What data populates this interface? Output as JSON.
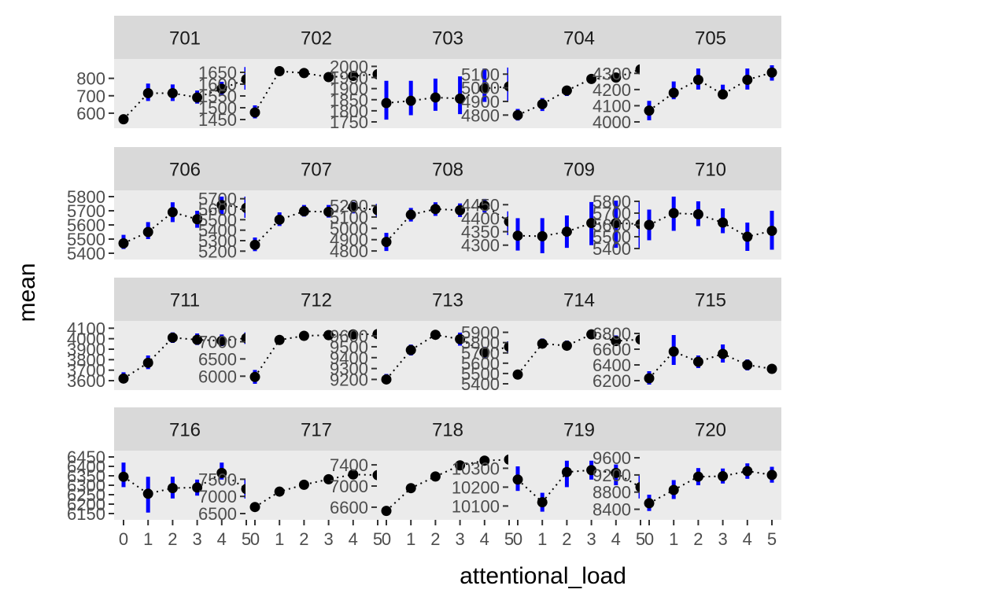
{
  "chart_data": {
    "type": "scatter",
    "description_style": "faceted point-range plot with dotted connecting lines",
    "xlabel": "attentional_load",
    "ylabel": "mean",
    "x_ticks": [
      0,
      1,
      2,
      3,
      4,
      5
    ],
    "grid": false,
    "colors": {
      "error_bar": "#0000ff",
      "point": "#000000",
      "line": "#000000",
      "strip": "#d9d9d9",
      "panel": "#ebebeb"
    },
    "panels": [
      {
        "label": "701",
        "ylim": [
          550,
          875
        ],
        "yticks": [
          600,
          700,
          800
        ],
        "means": [
          565,
          715,
          715,
          690,
          740,
          795
        ],
        "lower": [
          545,
          670,
          670,
          655,
          705,
          735
        ],
        "upper": [
          590,
          770,
          765,
          730,
          780,
          865
        ]
      },
      {
        "label": "702",
        "ylim": [
          1440,
          1680
        ],
        "yticks": [
          1450,
          1500,
          1550,
          1600,
          1650
        ],
        "means": [
          1480,
          1655,
          1647,
          1630,
          1635,
          1642
        ],
        "lower": [
          1455,
          1648,
          1640,
          1624,
          1628,
          1635
        ],
        "upper": [
          1510,
          1662,
          1654,
          1636,
          1642,
          1649
        ]
      },
      {
        "label": "703",
        "ylim": [
          1750,
          2005
        ],
        "yticks": [
          1750,
          1800,
          1850,
          1900,
          1950,
          2000
        ],
        "means": [
          1835,
          1845,
          1860,
          1855,
          1900,
          1910
        ],
        "lower": [
          1760,
          1780,
          1800,
          1785,
          1840,
          1845
        ],
        "upper": [
          1935,
          1935,
          1945,
          1955,
          1990,
          1995
        ]
      },
      {
        "label": "704",
        "ylim": [
          4750,
          5165
        ],
        "yticks": [
          4800,
          4900,
          5000,
          5100
        ],
        "means": [
          4800,
          4880,
          4980,
          5065,
          5075,
          5135
        ],
        "lower": [
          4760,
          4830,
          4940,
          5045,
          5055,
          5120
        ],
        "upper": [
          4845,
          4925,
          5010,
          5080,
          5090,
          5150
        ]
      },
      {
        "label": "705",
        "ylim": [
          4000,
          4350
        ],
        "yticks": [
          4000,
          4100,
          4200,
          4300
        ],
        "means": [
          4070,
          4180,
          4260,
          4170,
          4260,
          4305
        ],
        "lower": [
          4010,
          4140,
          4200,
          4140,
          4200,
          4255
        ],
        "upper": [
          4130,
          4250,
          4330,
          4230,
          4330,
          4350
        ]
      },
      {
        "label": "706",
        "ylim": [
          5400,
          5800
        ],
        "yticks": [
          5400,
          5500,
          5600,
          5700,
          5800
        ],
        "means": [
          5470,
          5550,
          5690,
          5640,
          5740,
          5720
        ],
        "lower": [
          5430,
          5500,
          5620,
          5580,
          5670,
          5650
        ],
        "upper": [
          5530,
          5620,
          5760,
          5700,
          5800,
          5800
        ]
      },
      {
        "label": "707",
        "ylim": [
          5180,
          5720
        ],
        "yticks": [
          5200,
          5300,
          5400,
          5500,
          5600,
          5700
        ],
        "means": [
          5260,
          5500,
          5580,
          5575,
          5620,
          5590
        ],
        "lower": [
          5200,
          5440,
          5530,
          5520,
          5560,
          5530
        ],
        "upper": [
          5330,
          5570,
          5640,
          5640,
          5670,
          5650
        ]
      },
      {
        "label": "708",
        "ylim": [
          4780,
          5280
        ],
        "yticks": [
          4800,
          4900,
          5000,
          5100,
          5200
        ],
        "means": [
          4880,
          5120,
          5170,
          5160,
          5200,
          5060
        ],
        "lower": [
          4800,
          5060,
          5110,
          5100,
          5140,
          4940
        ],
        "upper": [
          4960,
          5180,
          5230,
          5220,
          5260,
          5150
        ]
      },
      {
        "label": "709",
        "ylim": [
          4270,
          4480
        ],
        "yticks": [
          4300,
          4350,
          4400,
          4450
        ],
        "means": [
          4335,
          4333,
          4350,
          4382,
          4382,
          4378
        ],
        "lower": [
          4280,
          4270,
          4290,
          4300,
          4290,
          4290
        ],
        "upper": [
          4400,
          4400,
          4410,
          4460,
          4465,
          4460
        ]
      },
      {
        "label": "710",
        "ylim": [
          5360,
          5840
        ],
        "yticks": [
          5400,
          5500,
          5600,
          5700,
          5800
        ],
        "means": [
          5600,
          5700,
          5690,
          5620,
          5500,
          5550
        ],
        "lower": [
          5470,
          5550,
          5590,
          5530,
          5380,
          5390
        ],
        "upper": [
          5730,
          5840,
          5800,
          5740,
          5620,
          5720
        ]
      },
      {
        "label": "711",
        "ylim": [
          3570,
          4110
        ],
        "yticks": [
          3600,
          3700,
          3800,
          3900,
          4000,
          4100
        ],
        "means": [
          3620,
          3770,
          4010,
          3990,
          3980,
          4005
        ],
        "lower": [
          3575,
          3710,
          3960,
          3940,
          3930,
          3950
        ],
        "upper": [
          3680,
          3840,
          4060,
          4050,
          4040,
          4060
        ]
      },
      {
        "label": "712",
        "ylim": [
          5780,
          7420
        ],
        "yticks": [
          6000,
          6500,
          7000
        ],
        "means": [
          5980,
          7050,
          7170,
          7190,
          7210,
          7220
        ],
        "lower": [
          5780,
          6950,
          7100,
          7120,
          7150,
          7160
        ],
        "upper": [
          6180,
          7150,
          7240,
          7260,
          7270,
          7280
        ]
      },
      {
        "label": "713",
        "ylim": [
          9160,
          9680
        ],
        "yticks": [
          9200,
          9300,
          9400,
          9500,
          9600
        ],
        "means": [
          9200,
          9470,
          9610,
          9570,
          9450,
          9500
        ],
        "lower": [
          9160,
          9420,
          9580,
          9510,
          9390,
          9450
        ],
        "upper": [
          9250,
          9520,
          9640,
          9630,
          9500,
          9550
        ]
      },
      {
        "label": "714",
        "ylim": [
          5400,
          5950
        ],
        "yticks": [
          5400,
          5500,
          5600,
          5700,
          5800,
          5900
        ],
        "means": [
          5490,
          5790,
          5770,
          5880,
          5815,
          5830
        ],
        "lower": [
          5455,
          5745,
          5730,
          5840,
          5770,
          5790
        ],
        "upper": [
          5530,
          5840,
          5820,
          5920,
          5870,
          5870
        ]
      },
      {
        "label": "715",
        "ylim": [
          6160,
          6880
        ],
        "yticks": [
          6200,
          6400,
          6600,
          6800
        ],
        "means": [
          6230,
          6570,
          6440,
          6540,
          6400,
          6350
        ],
        "lower": [
          6150,
          6400,
          6360,
          6430,
          6330,
          6290
        ],
        "upper": [
          6320,
          6780,
          6520,
          6660,
          6470,
          6410
        ]
      },
      {
        "label": "716",
        "ylim": [
          6150,
          6450
        ],
        "yticks": [
          6150,
          6200,
          6250,
          6300,
          6350,
          6400,
          6450
        ],
        "means": [
          6345,
          6255,
          6285,
          6288,
          6365,
          6280
        ],
        "lower": [
          6290,
          6155,
          6230,
          6245,
          6330,
          6230
        ],
        "upper": [
          6420,
          6345,
          6345,
          6330,
          6420,
          6330
        ]
      },
      {
        "label": "717",
        "ylim": [
          6500,
          8150
        ],
        "yticks": [
          6500,
          7000,
          7500
        ],
        "means": [
          6690,
          7140,
          7340,
          7500,
          7640,
          7620
        ],
        "lower": [
          6600,
          7030,
          7220,
          7400,
          7520,
          7500
        ],
        "upper": [
          6790,
          7250,
          7440,
          7610,
          7760,
          7740
        ]
      },
      {
        "label": "718",
        "ylim": [
          6480,
          7550
        ],
        "yticks": [
          6600,
          7000,
          7400
        ],
        "means": [
          6530,
          6960,
          7180,
          7390,
          7480,
          7500
        ],
        "lower": [
          6480,
          6900,
          7120,
          7330,
          7450,
          7475
        ],
        "upper": [
          6600,
          7030,
          7250,
          7450,
          7510,
          7525
        ]
      },
      {
        "label": "719",
        "ylim": [
          10060,
          10360
        ],
        "yticks": [
          10100,
          10200,
          10300
        ],
        "means": [
          10240,
          10120,
          10280,
          10290,
          10275,
          10200
        ],
        "lower": [
          10180,
          10070,
          10200,
          10240,
          10210,
          10140
        ],
        "upper": [
          10310,
          10170,
          10340,
          10340,
          10320,
          10260
        ]
      },
      {
        "label": "720",
        "ylim": [
          8300,
          9620
        ],
        "yticks": [
          8400,
          8800,
          9200,
          9600
        ],
        "means": [
          8540,
          8850,
          9160,
          9170,
          9290,
          9200
        ],
        "lower": [
          8360,
          8640,
          8960,
          9000,
          9110,
          9020
        ],
        "upper": [
          8740,
          9080,
          9360,
          9350,
          9470,
          9390
        ]
      }
    ]
  }
}
